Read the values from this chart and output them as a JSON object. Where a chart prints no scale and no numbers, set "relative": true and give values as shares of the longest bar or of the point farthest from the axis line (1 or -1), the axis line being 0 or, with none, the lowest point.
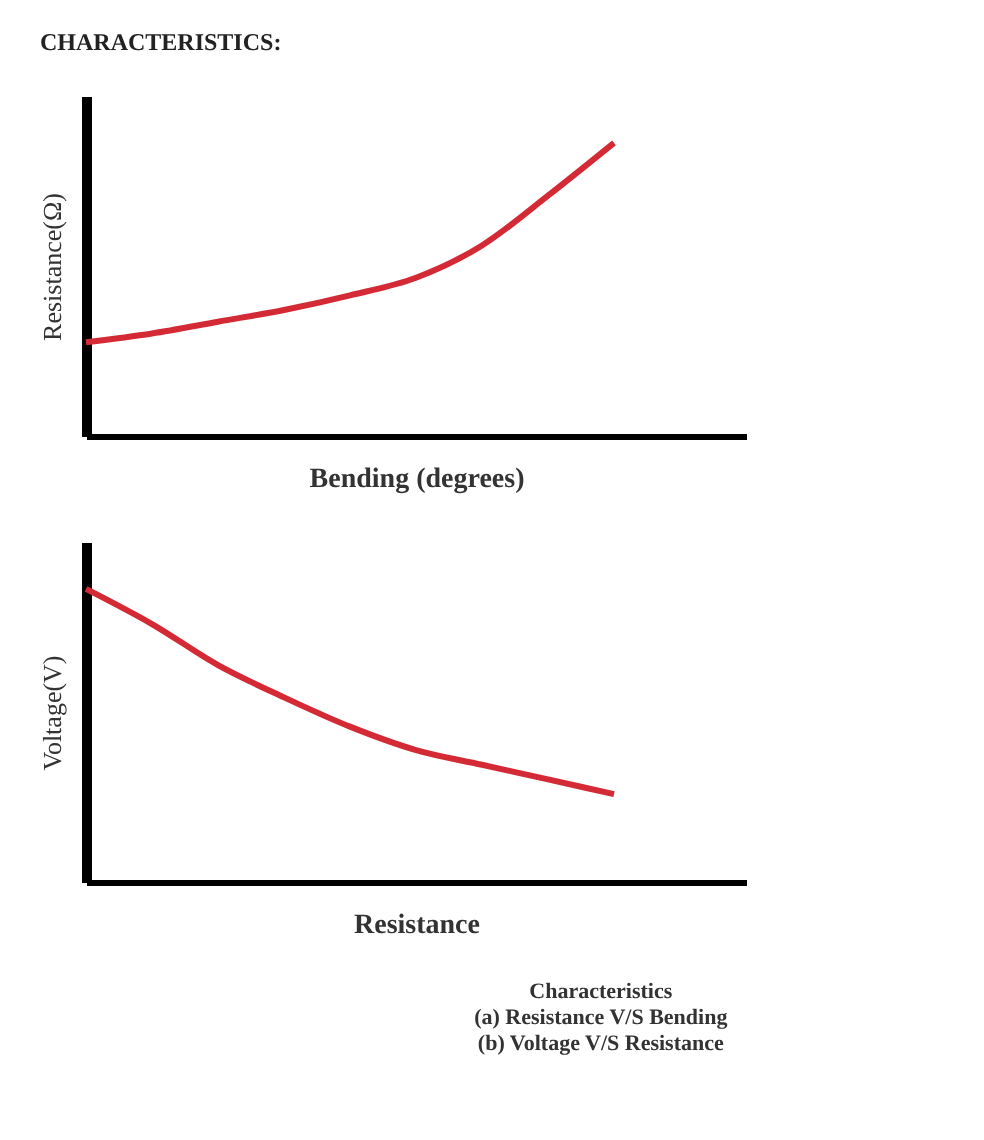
{
  "chart_data": [
    {
      "type": "line",
      "title": "CHARACTERISTICS:",
      "ylabel": "Resistance(Ω)",
      "xlabel": "Bending (degrees)",
      "relative": true,
      "tick_labels": false,
      "grid": false,
      "categories": [
        null,
        null,
        null,
        null,
        null,
        null,
        null,
        null,
        null,
        null,
        null
      ],
      "series": [
        {
          "color": "#d42a35",
          "values": [
            0.32,
            0.35,
            0.39,
            0.43,
            0.48,
            0.54,
            0.65,
            0.82,
            1.0,
            null,
            null
          ]
        }
      ]
    },
    {
      "type": "line",
      "ylabel": "Voltage(V)",
      "xlabel": "Resistance",
      "relative": true,
      "tick_labels": false,
      "grid": false,
      "categories": [
        null,
        null,
        null,
        null,
        null,
        null,
        null,
        null,
        null,
        null,
        null
      ],
      "series": [
        {
          "color": "#d42a35",
          "values": [
            1.0,
            0.88,
            0.74,
            0.63,
            0.53,
            0.45,
            0.4,
            0.35,
            0.3,
            null,
            null
          ]
        }
      ],
      "annotations": [
        "Characteristics",
        "(a) Resistance V/S Bending",
        "(b) Voltage V/S Resistance"
      ]
    }
  ]
}
